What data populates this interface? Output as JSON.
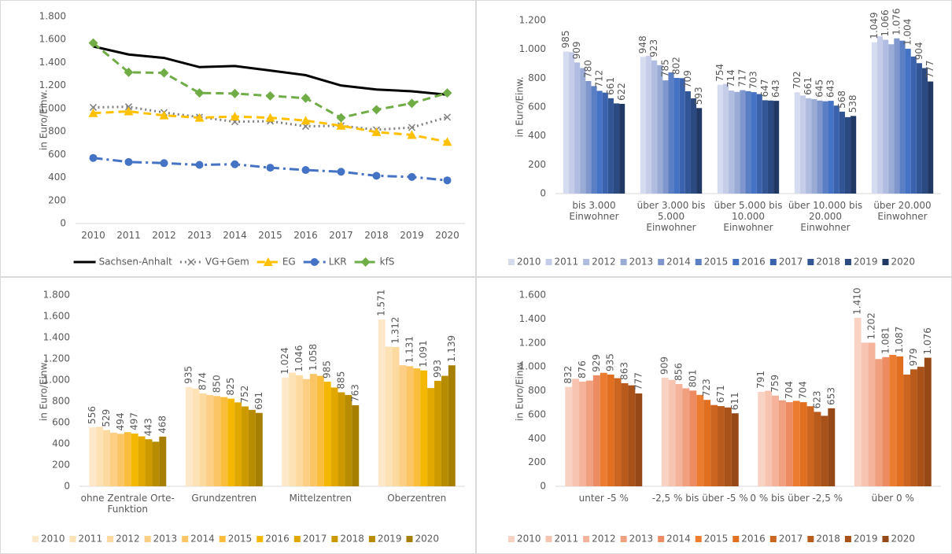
{
  "chart_data": [
    {
      "type": "line",
      "y_label": "in Euro/Einw.",
      "legend": "bottom",
      "grid": false,
      "categories": [
        "2010",
        "2011",
        "2012",
        "2013",
        "2014",
        "2015",
        "2016",
        "2017",
        "2018",
        "2019",
        "2020"
      ],
      "ylim": [
        0,
        1800
      ],
      "yticks": [
        0,
        200,
        400,
        600,
        800,
        {
          "value": 1000,
          "label": "1.000"
        },
        {
          "value": 1200,
          "label": "1.200"
        },
        {
          "value": 1400,
          "label": "1.400"
        },
        {
          "value": 1600,
          "label": "1.600"
        },
        {
          "value": 1800,
          "label": "1.800"
        }
      ],
      "series": [
        {
          "name": "Sachsen-Anhalt",
          "color": "#000000",
          "dash": "solid",
          "marker": "none",
          "values": [
            1540,
            1470,
            1440,
            1360,
            1370,
            1330,
            1290,
            1200,
            1165,
            1150,
            1120
          ]
        },
        {
          "name": "VG+Gem",
          "color": "#7f7f7f",
          "dash": "dot",
          "marker": "x",
          "values": [
            1010,
            1015,
            965,
            925,
            885,
            890,
            845,
            850,
            815,
            835,
            925
          ]
        },
        {
          "name": "EG",
          "color": "#ffc000",
          "dash": "dash",
          "marker": "triangle",
          "values": [
            960,
            975,
            940,
            920,
            930,
            920,
            895,
            850,
            795,
            770,
            710
          ]
        },
        {
          "name": "LKR",
          "color": "#4472c4",
          "dash": "dashdot",
          "marker": "circle",
          "values": [
            570,
            535,
            525,
            510,
            515,
            485,
            465,
            450,
            415,
            405,
            375
          ]
        },
        {
          "name": "kfS",
          "color": "#70ad47",
          "dash": "dash",
          "marker": "diamond",
          "values": [
            1570,
            1315,
            1310,
            1135,
            1130,
            1110,
            1090,
            920,
            990,
            1045,
            1135
          ]
        }
      ]
    },
    {
      "type": "bar",
      "y_label": "in Euro/Einw.",
      "legend": "bottom",
      "grid": false,
      "categories": [
        "bis 3.000 Einwohner",
        "über 3.000 bis 5.000 Einwohner",
        "über 5.000 bis 10.000 Einwohner",
        "über 10.000 bis 20.000 Einwohner",
        "über 20.000 Einwohner"
      ],
      "ylim": [
        0,
        1200
      ],
      "yticks": [
        0,
        200,
        400,
        600,
        800,
        {
          "value": 1000,
          "label": "1.000"
        },
        {
          "value": 1200,
          "label": "1.200"
        }
      ],
      "series": [
        {
          "name": "2010",
          "color": "#d6dcef",
          "values": [
            985,
            948,
            754,
            702,
            1049
          ],
          "value_labels": [
            "985",
            "948",
            "754",
            "702",
            "1.049"
          ]
        },
        {
          "name": "2011",
          "color": "#c5cde8",
          "values": [
            980,
            955,
            760,
            680,
            1090
          ],
          "value_labels": [
            null,
            null,
            null,
            null,
            null
          ]
        },
        {
          "name": "2012",
          "color": "#b1bde0",
          "values": [
            909,
            923,
            714,
            661,
            1066
          ],
          "value_labels": [
            "909",
            "923",
            "714",
            "661",
            "1.066"
          ]
        },
        {
          "name": "2013",
          "color": "#9aabd6",
          "values": [
            870,
            890,
            705,
            655,
            1035
          ],
          "value_labels": [
            null,
            null,
            null,
            null,
            null
          ]
        },
        {
          "name": "2014",
          "color": "#7f97cc",
          "values": [
            780,
            785,
            717,
            645,
            1076
          ],
          "value_labels": [
            "780",
            "785",
            "717",
            "645",
            "1.076"
          ]
        },
        {
          "name": "2015",
          "color": "#5b7fc4",
          "values": [
            745,
            840,
            710,
            640,
            1060
          ],
          "value_labels": [
            null,
            null,
            null,
            null,
            null
          ]
        },
        {
          "name": "2016",
          "color": "#4472c4",
          "values": [
            712,
            802,
            703,
            643,
            1004
          ],
          "value_labels": [
            "712",
            "802",
            "703",
            "643",
            "1.004"
          ]
        },
        {
          "name": "2017",
          "color": "#3a62ad",
          "values": [
            700,
            800,
            690,
            610,
            950
          ],
          "value_labels": [
            null,
            null,
            null,
            null,
            null
          ]
        },
        {
          "name": "2018",
          "color": "#325595",
          "values": [
            661,
            709,
            647,
            568,
            904
          ],
          "value_labels": [
            "661",
            "709",
            "647",
            "568",
            "904"
          ]
        },
        {
          "name": "2019",
          "color": "#2b4a82",
          "values": [
            625,
            660,
            645,
            530,
            870
          ],
          "value_labels": [
            null,
            null,
            null,
            null,
            null
          ]
        },
        {
          "name": "2020",
          "color": "#203864",
          "values": [
            622,
            593,
            643,
            538,
            777
          ],
          "value_labels": [
            "622",
            "593",
            "643",
            "538",
            "777"
          ]
        }
      ]
    },
    {
      "type": "bar",
      "y_label": "in Euro/Einw.",
      "legend": "bottom",
      "grid": false,
      "categories": [
        "ohne Zentrale Orte-Funktion",
        "Grundzentren",
        "Mittelzentren",
        "Oberzentren"
      ],
      "ylim": [
        0,
        1800
      ],
      "yticks": [
        0,
        200,
        400,
        600,
        800,
        {
          "value": 1000,
          "label": "1.000"
        },
        {
          "value": 1200,
          "label": "1.200"
        },
        {
          "value": 1400,
          "label": "1.400"
        },
        {
          "value": 1600,
          "label": "1.600"
        },
        {
          "value": 1800,
          "label": "1.800"
        }
      ],
      "series": [
        {
          "name": "2010",
          "color": "#fde9c9",
          "values": [
            556,
            935,
            1024,
            1571
          ],
          "value_labels": [
            "556",
            "935",
            "1.024",
            "1.571"
          ]
        },
        {
          "name": "2011",
          "color": "#fde2b5",
          "values": [
            560,
            920,
            1070,
            1315
          ],
          "value_labels": [
            null,
            null,
            null,
            null
          ]
        },
        {
          "name": "2012",
          "color": "#fcd99e",
          "values": [
            529,
            874,
            1046,
            1312
          ],
          "value_labels": [
            "529",
            "874",
            "1.046",
            "1.312"
          ]
        },
        {
          "name": "2013",
          "color": "#fccf85",
          "values": [
            505,
            860,
            1010,
            1140
          ],
          "value_labels": [
            null,
            null,
            null,
            null
          ]
        },
        {
          "name": "2014",
          "color": "#fbc566",
          "values": [
            494,
            850,
            1058,
            1131
          ],
          "value_labels": [
            "494",
            "850",
            "1.058",
            "1.131"
          ]
        },
        {
          "name": "2015",
          "color": "#fbbd3c",
          "values": [
            510,
            840,
            1040,
            1110
          ],
          "value_labels": [
            null,
            null,
            null,
            null
          ]
        },
        {
          "name": "2016",
          "color": "#f5b800",
          "values": [
            497,
            825,
            985,
            1091
          ],
          "value_labels": [
            "497",
            "825",
            "985",
            "1.091"
          ]
        },
        {
          "name": "2017",
          "color": "#e0a800",
          "values": [
            470,
            790,
            930,
            925
          ],
          "value_labels": [
            null,
            null,
            null,
            null
          ]
        },
        {
          "name": "2018",
          "color": "#cc9a00",
          "values": [
            443,
            752,
            885,
            993
          ],
          "value_labels": [
            "443",
            "752",
            "885",
            "993"
          ]
        },
        {
          "name": "2019",
          "color": "#b88c00",
          "values": [
            420,
            720,
            860,
            1040
          ],
          "value_labels": [
            null,
            null,
            null,
            null
          ]
        },
        {
          "name": "2020",
          "color": "#a67f00",
          "values": [
            468,
            691,
            763,
            1139
          ],
          "value_labels": [
            "468",
            "691",
            "763",
            "1.139"
          ]
        }
      ]
    },
    {
      "type": "bar",
      "y_label": "in Euro/Einw.",
      "legend": "bottom",
      "grid": false,
      "categories": [
        "unter -5 %",
        "-2,5 % bis über -5 %",
        "0 % bis über -2,5 %",
        "über 0 %"
      ],
      "ylim": [
        0,
        1600
      ],
      "yticks": [
        0,
        200,
        400,
        600,
        800,
        {
          "value": 1000,
          "label": "1.000"
        },
        {
          "value": 1200,
          "label": "1.200"
        },
        {
          "value": 1400,
          "label": "1.400"
        },
        {
          "value": 1600,
          "label": "1.600"
        }
      ],
      "series": [
        {
          "name": "2010",
          "color": "#f8d3c4",
          "values": [
            832,
            909,
            791,
            1410
          ],
          "value_labels": [
            "832",
            "909",
            "791",
            "1.410"
          ]
        },
        {
          "name": "2011",
          "color": "#f6c4b0",
          "values": [
            900,
            890,
            800,
            1202
          ],
          "value_labels": [
            null,
            null,
            null,
            null
          ]
        },
        {
          "name": "2012",
          "color": "#f4b39a",
          "values": [
            876,
            856,
            759,
            1202
          ],
          "value_labels": [
            "876",
            "856",
            "759",
            "1.202"
          ]
        },
        {
          "name": "2013",
          "color": "#f0a07f",
          "values": [
            885,
            820,
            720,
            1065
          ],
          "value_labels": [
            null,
            null,
            null,
            null
          ]
        },
        {
          "name": "2014",
          "color": "#ed8b62",
          "values": [
            929,
            801,
            704,
            1081
          ],
          "value_labels": [
            "929",
            "801",
            "704",
            "1.081"
          ]
        },
        {
          "name": "2015",
          "color": "#ec7c30",
          "values": [
            950,
            765,
            715,
            1100
          ],
          "value_labels": [
            null,
            null,
            null,
            null
          ]
        },
        {
          "name": "2016",
          "color": "#e06f20",
          "values": [
            935,
            723,
            704,
            1087
          ],
          "value_labels": [
            "935",
            "723",
            "704",
            "1.087"
          ]
        },
        {
          "name": "2017",
          "color": "#cc6520",
          "values": [
            905,
            680,
            670,
            935
          ],
          "value_labels": [
            null,
            null,
            null,
            null
          ]
        },
        {
          "name": "2018",
          "color": "#b85b1c",
          "values": [
            863,
            671,
            623,
            979
          ],
          "value_labels": [
            "863",
            "671",
            "623",
            "979"
          ]
        },
        {
          "name": "2019",
          "color": "#a8521a",
          "values": [
            845,
            660,
            590,
            1000
          ],
          "value_labels": [
            null,
            null,
            null,
            null
          ]
        },
        {
          "name": "2020",
          "color": "#964817",
          "values": [
            777,
            611,
            653,
            1076
          ],
          "value_labels": [
            "777",
            "611",
            "653",
            "1.076"
          ]
        }
      ]
    }
  ]
}
